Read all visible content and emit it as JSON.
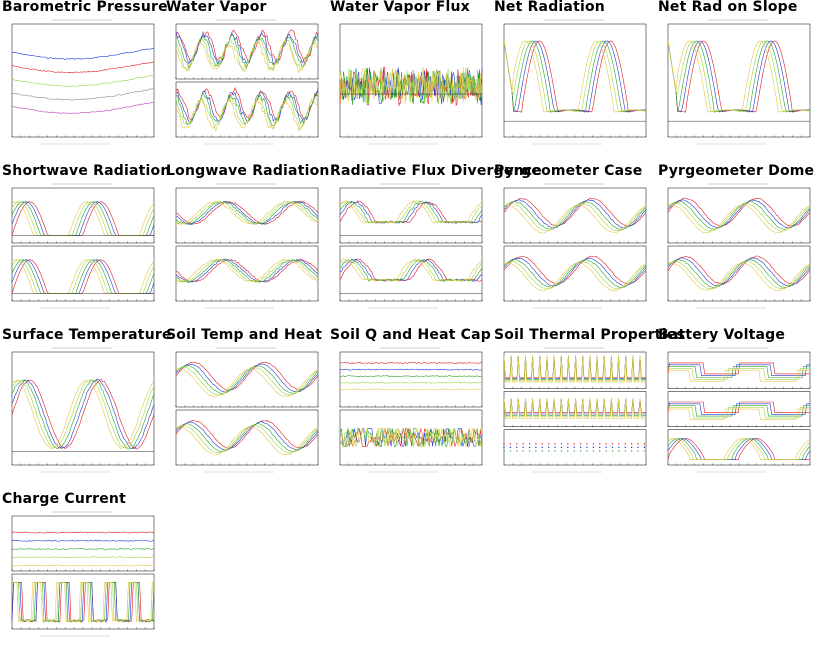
{
  "colors": {
    "red": "#e41a1c",
    "blue": "#1f3bd6",
    "green": "#2ca02c",
    "lime": "#9cd84a",
    "yellow": "#e8c547",
    "orange": "#f4a742",
    "purple": "#a020a0",
    "magenta": "#c040c0",
    "gray": "#888888",
    "black": "#000000"
  },
  "panels": [
    {
      "title": "Barometric Pressure",
      "subplots": [
        {
          "kind": "baro",
          "h": 1
        }
      ]
    },
    {
      "title": "Water Vapor",
      "subplots": [
        {
          "kind": "diurnal-noisy",
          "h": 0.5
        },
        {
          "kind": "diurnal-noisy",
          "h": 0.5
        }
      ]
    },
    {
      "title": "Water Vapor Flux",
      "subplots": [
        {
          "kind": "flux",
          "h": 1
        }
      ]
    },
    {
      "title": "Net Radiation",
      "subplots": [
        {
          "kind": "netrad",
          "h": 1
        }
      ]
    },
    {
      "title": "Net Rad on Slope",
      "subplots": [
        {
          "kind": "netrad",
          "h": 1
        }
      ]
    },
    {
      "title": "Shortwave Radiation",
      "subplots": [
        {
          "kind": "bumps",
          "h": 0.5
        },
        {
          "kind": "bumps",
          "h": 0.5
        }
      ]
    },
    {
      "title": "Longwave Radiation",
      "subplots": [
        {
          "kind": "longwave",
          "h": 0.5
        },
        {
          "kind": "longwave",
          "h": 0.5
        }
      ]
    },
    {
      "title": "Radiative Flux Divergence",
      "subplots": [
        {
          "kind": "bumps-low",
          "h": 0.5
        },
        {
          "kind": "bumps-low",
          "h": 0.5
        }
      ]
    },
    {
      "title": "Pyrgeometer Case",
      "subplots": [
        {
          "kind": "diurnal",
          "h": 0.5
        },
        {
          "kind": "diurnal",
          "h": 0.5
        }
      ]
    },
    {
      "title": "Pyrgeometer Dome",
      "subplots": [
        {
          "kind": "diurnal",
          "h": 0.5
        },
        {
          "kind": "diurnal",
          "h": 0.5
        }
      ]
    },
    {
      "title": "Surface Temperature",
      "subplots": [
        {
          "kind": "surftemp",
          "h": 1
        }
      ]
    },
    {
      "title": "Soil Temp and Heat",
      "subplots": [
        {
          "kind": "diurnal",
          "h": 0.5
        },
        {
          "kind": "diurnal",
          "h": 0.5
        }
      ]
    },
    {
      "title": "Soil Q and Heat Cap",
      "subplots": [
        {
          "kind": "flat",
          "h": 0.5
        },
        {
          "kind": "steps",
          "h": 0.5
        }
      ]
    },
    {
      "title": "Soil Thermal Properties",
      "subplots": [
        {
          "kind": "spikes",
          "h": 0.34
        },
        {
          "kind": "spikes2",
          "h": 0.33
        },
        {
          "kind": "dots",
          "h": 0.33
        }
      ]
    },
    {
      "title": "Battery Voltage",
      "subplots": [
        {
          "kind": "battery",
          "h": 0.34
        },
        {
          "kind": "battery",
          "h": 0.33
        },
        {
          "kind": "square",
          "h": 0.33
        }
      ]
    },
    {
      "title": "Charge Current",
      "subplots": [
        {
          "kind": "current",
          "h": 0.5
        },
        {
          "kind": "current2",
          "h": 0.5
        }
      ]
    }
  ]
}
